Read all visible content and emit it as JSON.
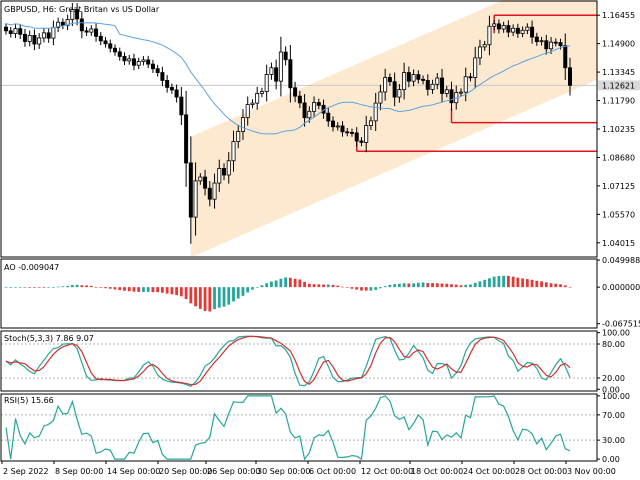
{
  "chart_data": {
    "type": "candlestick",
    "symbol_label": "GBPUSD, H6:  Great Britan vs US Dollar",
    "current_price_label": "1.12621",
    "x_tick_labels": [
      "2 Sep 2022",
      "8 Sep 00:00",
      "14 Sep 00:00",
      "20 Sep 00:00",
      "26 Sep 00:00",
      "30 Sep 00:00",
      "6 Oct 00:00",
      "12 Oct 00:00",
      "18 Oct 00:00",
      "24 Oct 00:00",
      "28 Oct 00:00",
      "3 Nov 00:00"
    ],
    "colors": {
      "channel": "#fde9cf",
      "ma": "#5ba3e0",
      "levels": "#e0141e",
      "ao_up": "#26a69a",
      "ao_down": "#e53935",
      "stoch_main": "#26a69a",
      "stoch_signal": "#d32f2f",
      "rsi": "#26a69a",
      "current_price": "#c8c8c8"
    },
    "price_panel": {
      "y_ticks": [
        "1.16455",
        "1.14900",
        "1.13345",
        "1.11790",
        "1.10235",
        "1.08680",
        "1.07125",
        "1.05570",
        "1.04015"
      ],
      "ylim": [
        1.0324,
        1.1723
      ],
      "close_series": [
        1.156,
        1.1545,
        1.1572,
        1.1541,
        1.1502,
        1.1535,
        1.1488,
        1.1521,
        1.1549,
        1.152,
        1.1578,
        1.1607,
        1.159,
        1.1622,
        1.1676,
        1.1625,
        1.156,
        1.1553,
        1.157,
        1.153,
        1.1505,
        1.1489,
        1.1465,
        1.1445,
        1.142,
        1.1396,
        1.1407,
        1.1372,
        1.1392,
        1.1401,
        1.1378,
        1.1353,
        1.1332,
        1.1289,
        1.1251,
        1.1237,
        1.1198,
        1.1101,
        1.0838,
        1.0542,
        1.074,
        1.0761,
        1.07,
        1.064,
        1.0728,
        1.0808,
        1.0772,
        1.085,
        1.0955,
        1.101,
        1.1086,
        1.1157,
        1.1165,
        1.1218,
        1.1228,
        1.1321,
        1.1358,
        1.1285,
        1.1444,
        1.1402,
        1.1249,
        1.1203,
        1.1166,
        1.1085,
        1.112,
        1.1168,
        1.1153,
        1.111,
        1.1067,
        1.1036,
        1.104,
        1.1008,
        1.1005,
        1.1002,
        1.0958,
        1.095,
        1.1042,
        1.1068,
        1.1165,
        1.1226,
        1.1305,
        1.1282,
        1.1198,
        1.1239,
        1.1332,
        1.1285,
        1.1321,
        1.1295,
        1.1289,
        1.124,
        1.1268,
        1.1302,
        1.1218,
        1.1238,
        1.1167,
        1.1223,
        1.1225,
        1.1309,
        1.1305,
        1.1412,
        1.1472,
        1.1484,
        1.1585,
        1.1598,
        1.157,
        1.1589,
        1.1553,
        1.1574,
        1.1546,
        1.1563,
        1.158,
        1.1526,
        1.1501,
        1.1506,
        1.1462,
        1.1498,
        1.1496,
        1.1479,
        1.1358,
        1.1262
      ],
      "moving_average_label": "",
      "resistance_level": 1.1645,
      "support_levels": [
        1.1058,
        1.0902
      ]
    },
    "ao_panel": {
      "label": "AO -0.009047",
      "y_ticks": [
        "0.049988",
        "0.000000",
        "-0.067515"
      ],
      "ylim": [
        -0.0755,
        0.052
      ]
    },
    "stoch_panel": {
      "label": "Stoch(5,3,3) 7.86 9.07",
      "y_ticks": [
        "100.00",
        "80.00",
        "20.00",
        "0.00"
      ],
      "ylim": [
        -3,
        103
      ]
    },
    "rsi_panel": {
      "label": "RSI(5) 15.66",
      "y_ticks": [
        "100.00",
        "70.00",
        "30.00",
        "0.00"
      ],
      "ylim": [
        -3,
        103
      ]
    }
  }
}
